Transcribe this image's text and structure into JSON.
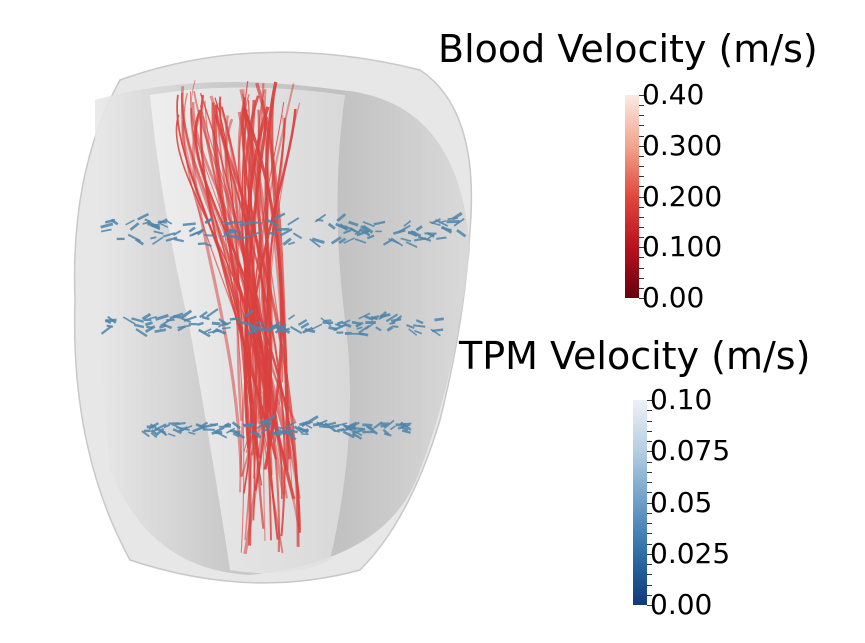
{
  "blood_legend": {
    "title": "Blood Velocity (m/s)",
    "ticks": [
      "0.40",
      "0.300",
      "0.200",
      "0.100",
      "0.00"
    ],
    "colors": [
      "#fbe9e2",
      "#f2a58e",
      "#e0483c",
      "#b8121f",
      "#67000d"
    ]
  },
  "tpm_legend": {
    "title": "TPM Velocity (m/s)",
    "ticks": [
      "0.10",
      "0.075",
      "0.05",
      "0.025",
      "0.00"
    ],
    "colors": [
      "#eef1f5",
      "#b5cde2",
      "#6c9ec8",
      "#2f6ea8",
      "#0f3b78"
    ]
  },
  "scene": {
    "shell_color": "#d9d9d9",
    "streamline_color": "#d9413e",
    "arrow_color": "#4e85ab"
  }
}
